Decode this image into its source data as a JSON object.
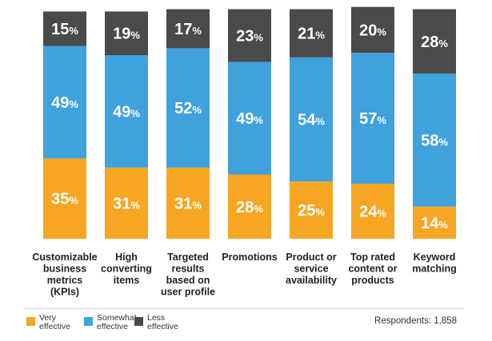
{
  "chart_data": {
    "type": "stacked-bar",
    "categories": [
      "Customizable business metrics (KPIs)",
      "High converting items",
      "Targeted results based on user profile",
      "Promotions",
      "Product or service availability",
      "Top rated content or products",
      "Keyword matching"
    ],
    "category_lines": [
      [
        "Customizable",
        "business",
        "metrics",
        "(KPIs)"
      ],
      [
        "High",
        "converting",
        "items"
      ],
      [
        "Targeted",
        "results",
        "based on",
        "user profile"
      ],
      [
        "Promotions"
      ],
      [
        "Product or",
        "service",
        "availability"
      ],
      [
        "Top rated",
        "content or",
        "products"
      ],
      [
        "Keyword",
        "matching"
      ]
    ],
    "series": [
      {
        "name": "Very effective",
        "legend_lines": [
          "Very",
          "effective"
        ],
        "color": "#f6a623",
        "values": [
          35,
          31,
          31,
          28,
          25,
          24,
          14
        ]
      },
      {
        "name": "Somewhat effective",
        "legend_lines": [
          "Somewhat",
          "effective"
        ],
        "color": "#3fa2dd",
        "values": [
          49,
          49,
          52,
          49,
          54,
          57,
          58
        ]
      },
      {
        "name": "Less effective",
        "legend_lines": [
          "Less",
          "effective"
        ],
        "color": "#4a4a4a",
        "values": [
          15,
          19,
          17,
          23,
          21,
          20,
          28
        ]
      }
    ],
    "ylim": [
      0,
      100
    ],
    "unit": "%",
    "title": "",
    "xlabel": "",
    "ylabel": ""
  },
  "respondents_text": "Respondents: 1,858"
}
